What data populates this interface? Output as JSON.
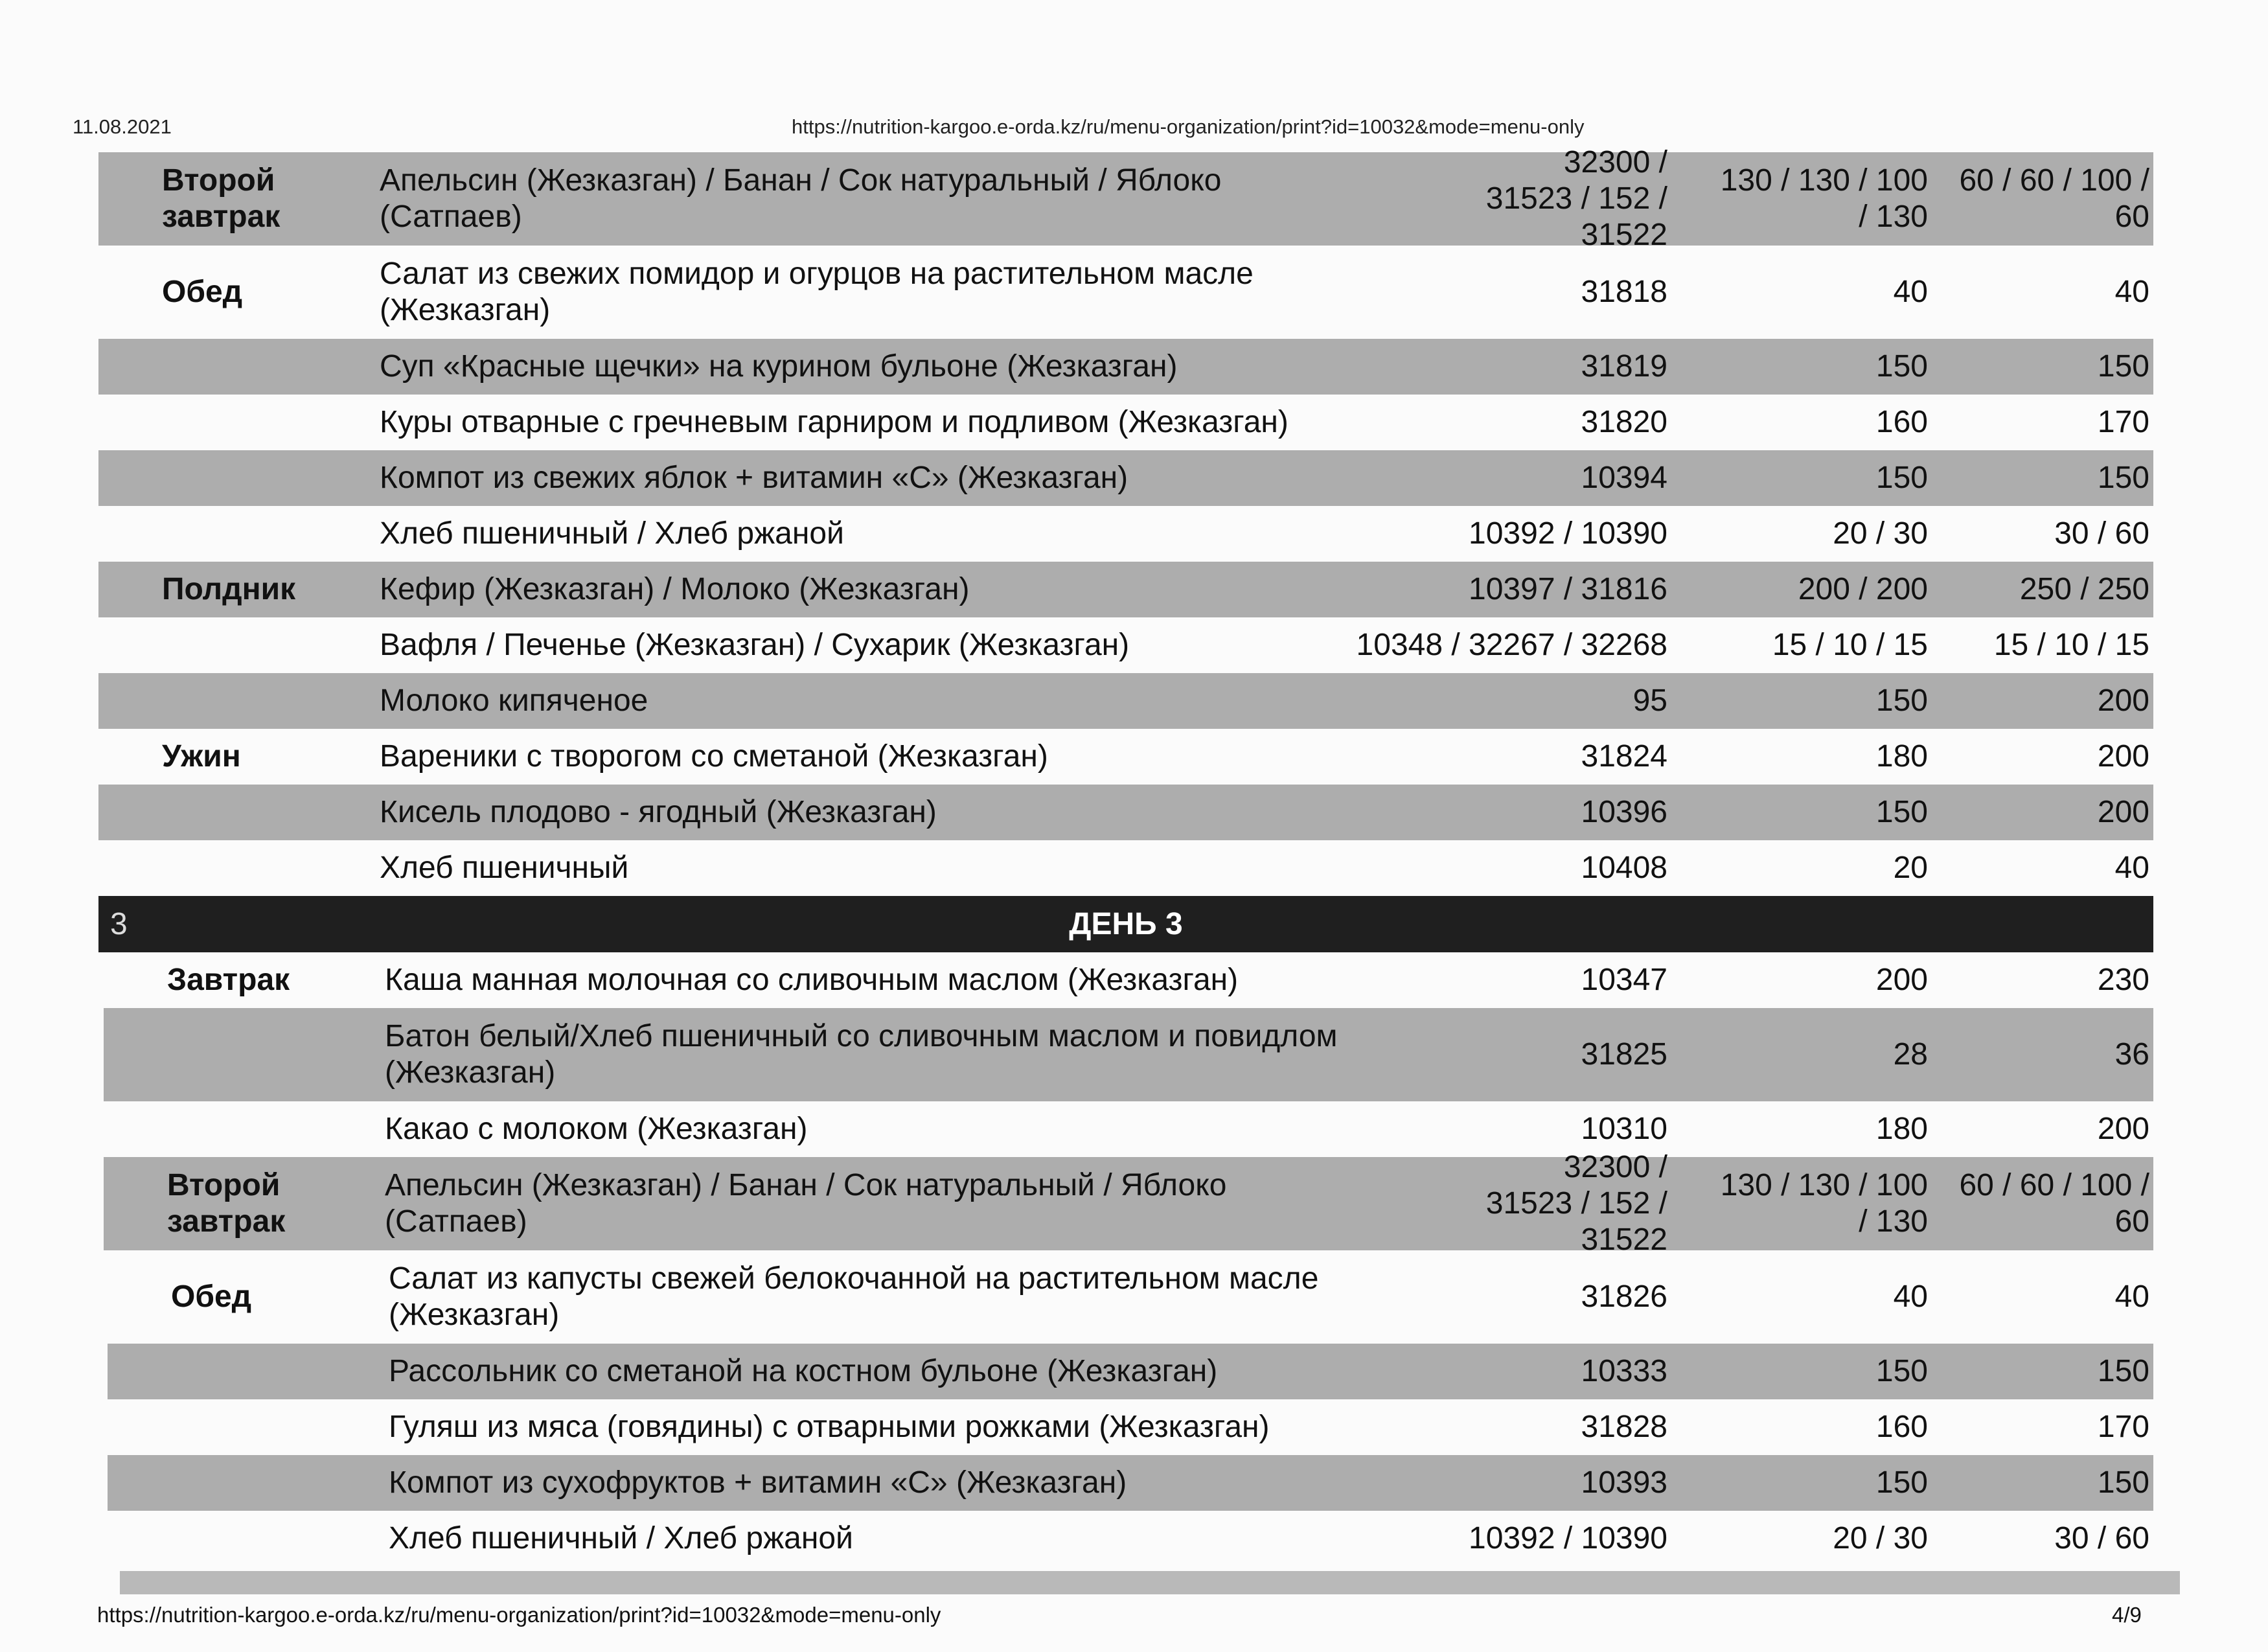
{
  "header": {
    "date": "11.08.2021",
    "url": "https://nutrition-kargoo.e-orda.kz/ru/menu-organization/print?id=10032&mode=menu-only"
  },
  "footer": {
    "url": "https://nutrition-kargoo.e-orda.kz/ru/menu-organization/print?id=10032&mode=menu-only",
    "page": "4/9"
  },
  "rows": [
    {
      "meal": "Второй завтрак",
      "dish": "Апельсин (Жезказган) / Банан / Сок натуральный / Яблоко (Сатпаев)",
      "code": "32300 / 31523 / 152 / 31522",
      "w1": "130 / 130 / 100 / 130",
      "w2": "60 / 60 / 100 / 60",
      "shaded": true,
      "double": true
    },
    {
      "meal": "Обед",
      "dish": "Салат из свежих помидор и огурцов на растительном масле (Жезказган)",
      "code": "31818",
      "w1": "40",
      "w2": "40",
      "shaded": false,
      "double": true
    },
    {
      "meal": "",
      "dish": "Суп «Красные щечки» на курином бульоне (Жезказган)",
      "code": "31819",
      "w1": "150",
      "w2": "150",
      "shaded": true
    },
    {
      "meal": "",
      "dish": "Куры отварные с гречневым гарниром и подливом (Жезказган)",
      "code": "31820",
      "w1": "160",
      "w2": "170",
      "shaded": false
    },
    {
      "meal": "",
      "dish": "Компот из свежих яблок + витамин «С» (Жезказган)",
      "code": "10394",
      "w1": "150",
      "w2": "150",
      "shaded": true
    },
    {
      "meal": "",
      "dish": "Хлеб пшеничный / Хлеб ржаной",
      "code": "10392 / 10390",
      "w1": "20 / 30",
      "w2": "30 / 60",
      "shaded": false
    },
    {
      "meal": "Полдник",
      "dish": "Кефир (Жезказган) / Молоко (Жезказган)",
      "code": "10397 / 31816",
      "w1": "200 / 200",
      "w2": "250 / 250",
      "shaded": true
    },
    {
      "meal": "",
      "dish": "Вафля / Печенье (Жезказган) / Сухарик (Жезказган)",
      "code": "10348 / 32267 / 32268",
      "w1": "15 / 10 / 15",
      "w2": "15 / 10 / 15",
      "shaded": false
    },
    {
      "meal": "",
      "dish": "Молоко кипяченое",
      "code": "95",
      "w1": "150",
      "w2": "200",
      "shaded": true
    },
    {
      "meal": "Ужин",
      "dish": "Вареники с творогом со сметаной (Жезказган)",
      "code": "31824",
      "w1": "180",
      "w2": "200",
      "shaded": false
    },
    {
      "meal": "",
      "dish": "Кисель плодово - ягодный (Жезказган)",
      "code": "10396",
      "w1": "150",
      "w2": "200",
      "shaded": true
    },
    {
      "meal": "",
      "dish": "Хлеб пшеничный",
      "code": "10408",
      "w1": "20",
      "w2": "40",
      "shaded": false
    },
    {
      "day": true,
      "num": "3",
      "title": "ДЕНЬ 3"
    },
    {
      "meal": "Завтрак",
      "dish": "Каша манная молочная со сливочным маслом (Жезказган)",
      "code": "10347",
      "w1": "200",
      "w2": "230",
      "shaded": false
    },
    {
      "meal": "",
      "dish": "Батон белый/Хлеб пшеничный со сливочным маслом и повидлом (Жезказган)",
      "code": "31825",
      "w1": "28",
      "w2": "36",
      "shaded": true,
      "double": true
    },
    {
      "meal": "",
      "dish": "Какао с молоком (Жезказган)",
      "code": "10310",
      "w1": "180",
      "w2": "200",
      "shaded": false
    },
    {
      "meal": "Второй завтрак",
      "dish": "Апельсин (Жезказган) / Банан / Сок натуральный / Яблоко (Сатпаев)",
      "code": "32300 / 31523 / 152 / 31522",
      "w1": "130 / 130 / 100 / 130",
      "w2": "60 / 60 / 100 / 60",
      "shaded": true,
      "double": true
    },
    {
      "meal": "Обед",
      "dish": "Салат из капусты свежей белокочанной на растительном масле (Жезказган)",
      "code": "31826",
      "w1": "40",
      "w2": "40",
      "shaded": false,
      "double": true
    },
    {
      "meal": "",
      "dish": "Рассольник со сметаной на костном бульоне (Жезказган)",
      "code": "10333",
      "w1": "150",
      "w2": "150",
      "shaded": true
    },
    {
      "meal": "",
      "dish": "Гуляш из мяса (говядины) с отварными рожками (Жезказган)",
      "code": "31828",
      "w1": "160",
      "w2": "170",
      "shaded": false
    },
    {
      "meal": "",
      "dish": "Компот из сухофруктов + витамин «С» (Жезказган)",
      "code": "10393",
      "w1": "150",
      "w2": "150",
      "shaded": true
    },
    {
      "meal": "",
      "dish": "Хлеб пшеничный / Хлеб ржаной",
      "code": "10392 / 10390",
      "w1": "20 / 30",
      "w2": "30 / 60",
      "shaded": false
    }
  ]
}
